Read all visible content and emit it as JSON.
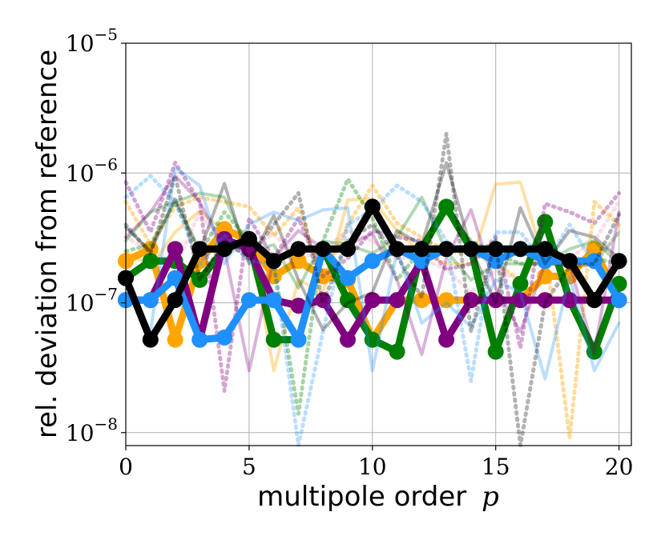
{
  "chart_data": {
    "type": "line",
    "xlabel": "multipole order",
    "xlabel_math": "p",
    "ylabel": "rel. deviation from reference",
    "xlim": [
      0,
      20.5
    ],
    "ylim_log10": [
      -8.1,
      -5
    ],
    "yscale": "log",
    "grid": true,
    "legend": "none",
    "x_ticks": [
      0,
      5,
      10,
      15,
      20
    ],
    "y_ticks": [
      {
        "base": "10",
        "exp": "−5",
        "value": -5
      },
      {
        "base": "10",
        "exp": "−6",
        "value": -6
      },
      {
        "base": "10",
        "exp": "−7",
        "value": -7
      },
      {
        "base": "10",
        "exp": "−8",
        "value": -8
      }
    ],
    "x": [
      0,
      1,
      2,
      3,
      4,
      5,
      6,
      7,
      8,
      9,
      10,
      11,
      12,
      13,
      14,
      15,
      16,
      17,
      18,
      19,
      20
    ],
    "series": [
      {
        "color": "#f5b8c8",
        "style": "dotted",
        "width": 5,
        "alpha": 0.45,
        "values": [
          3.2e-07,
          2.5e-07,
          1.9e-07,
          5e-07,
          2.5e-07,
          2.6e-07,
          3.4e-07,
          2.2e-07,
          2.5e-07,
          3.6e-07,
          3e-07,
          2.2e-07,
          2.2e-07,
          1.8e-07,
          1.2e-07,
          1.8e-07,
          1.5e-07,
          2.4e-07,
          2.2e-07,
          3e-07,
          6e-07
        ]
      },
      {
        "color": "#ffa500",
        "style": "dotted",
        "width": 5,
        "alpha": 0.4,
        "values": [
          6e-07,
          2.8e-07,
          5.5e-07,
          6.5e-07,
          6e-07,
          5.5e-07,
          3.3e-07,
          5.4e-07,
          1.5e-07,
          4e-07,
          8e-07,
          4.1e-07,
          3.2e-07,
          2.5e-07,
          2.4e-07,
          2e-07,
          1.5e-07,
          2.8e-07,
          9e-09,
          6e-07,
          4e-07
        ]
      },
      {
        "color": "#ffa500",
        "style": "solid",
        "width": 4,
        "alpha": 0.35,
        "values": [
          2.5e-07,
          1.9e-07,
          3.5e-07,
          5.1e-07,
          3.6e-07,
          3.5e-07,
          3e-08,
          1.5e-07,
          1.2e-07,
          6.2e-07,
          6.3e-07,
          3.6e-07,
          2.4e-07,
          2e-07,
          2e-07,
          8.2e-07,
          8.5e-07,
          2e-07,
          2e-07,
          2e-07,
          3.5e-07
        ]
      },
      {
        "color": "#ffa500",
        "style": "solid",
        "width": 9,
        "alpha": 1.0,
        "markers": true,
        "values": [
          2.1e-07,
          2.6e-07,
          5.2e-08,
          2.1e-07,
          3.7e-07,
          3e-07,
          1.6e-07,
          2.1e-07,
          1.6e-07,
          1.5e-07,
          5.2e-08,
          1.05e-07,
          1.05e-07,
          1.05e-07,
          1.05e-07,
          1.05e-07,
          1.05e-07,
          1.6e-07,
          1.6e-07,
          2.6e-07,
          1.05e-07
        ]
      },
      {
        "color": "#008000",
        "style": "dotted",
        "width": 5,
        "alpha": 0.35,
        "values": [
          2.5e-07,
          2.8e-07,
          6e-07,
          2.4e-07,
          5e-07,
          3e-07,
          2e-07,
          1.4e-08,
          3e-07,
          9e-07,
          4.5e-07,
          1.5e-07,
          2.6e-07,
          5e-07,
          3e-07,
          2.4e-07,
          2e-07,
          2e-07,
          2e-07,
          2.2e-07,
          2e-07
        ]
      },
      {
        "color": "#008000",
        "style": "solid",
        "width": 4,
        "alpha": 0.3,
        "values": [
          3e-07,
          5e-07,
          6e-07,
          7e-07,
          6.5e-07,
          2.5e-07,
          2.8e-07,
          1.3e-07,
          3e-07,
          2.8e-07,
          2.4e-07,
          3.2e-07,
          6.5e-07,
          2.5e-07,
          1.5e-07,
          2e-07,
          2e-07,
          2e-07,
          2.6e-07,
          3e-07,
          2e-07
        ]
      },
      {
        "color": "#008000",
        "style": "solid",
        "width": 9,
        "alpha": 1.0,
        "markers": true,
        "values": [
          1.55e-07,
          2.1e-07,
          2.1e-07,
          1.5e-07,
          2.6e-07,
          3e-07,
          5.2e-08,
          5.2e-08,
          2.6e-07,
          1.05e-07,
          5.2e-08,
          4.2e-08,
          2.6e-07,
          5.5e-07,
          2.6e-07,
          4.2e-08,
          1.4e-07,
          4.2e-07,
          1.05e-07,
          4.2e-08,
          1.4e-07
        ]
      },
      {
        "color": "#800080",
        "style": "dotted",
        "width": 5,
        "alpha": 0.35,
        "values": [
          8.5e-07,
          3.5e-07,
          1.2e-06,
          6e-07,
          2.1e-08,
          4.5e-07,
          2.2e-07,
          4.5e-07,
          1.6e-07,
          2.2e-07,
          3.6e-07,
          3.2e-07,
          3e-07,
          1.8e-07,
          2e-07,
          3.2e-07,
          4.5e-08,
          5.8e-07,
          5e-07,
          4.1e-07,
          7e-07
        ]
      },
      {
        "color": "#800080",
        "style": "solid",
        "width": 4,
        "alpha": 0.3,
        "values": [
          3.2e-07,
          5e-07,
          9.5e-07,
          6e-07,
          2.6e-07,
          3e-08,
          2.2e-07,
          3.6e-07,
          2.6e-07,
          2.8e-07,
          3.4e-07,
          1.5e-07,
          4e-08,
          2.2e-07,
          5.2e-07,
          1.3e-07,
          6e-08,
          2e-07,
          2e-07,
          4.1e-08,
          5e-07
        ]
      },
      {
        "color": "#800080",
        "style": "solid",
        "width": 9,
        "alpha": 1.0,
        "markers": true,
        "values": [
          1.05e-07,
          1.05e-07,
          2.6e-07,
          5.2e-08,
          3.1e-07,
          2.6e-07,
          1.05e-07,
          9.5e-08,
          1.05e-07,
          5.2e-08,
          1.05e-07,
          1.05e-07,
          2.1e-07,
          5.2e-08,
          1.05e-07,
          1.05e-07,
          1.05e-07,
          1.05e-07,
          1.05e-07,
          1.05e-07,
          1.05e-07
        ]
      },
      {
        "color": "#1e90ff",
        "style": "dotted",
        "width": 5,
        "alpha": 0.3,
        "values": [
          6.5e-07,
          9.5e-07,
          6e-07,
          2e-07,
          3.3e-07,
          2.1e-07,
          2e-07,
          8e-09,
          6e-08,
          4e-07,
          5.2e-07,
          8e-07,
          6e-07,
          3e-07,
          2.5e-08,
          3.5e-07,
          3.5e-07,
          2e-07,
          4e-07,
          2e-07,
          3.5e-07
        ]
      },
      {
        "color": "#1e90ff",
        "style": "solid",
        "width": 4,
        "alpha": 0.3,
        "values": [
          1.5e-07,
          6e-08,
          1.1e-06,
          8e-07,
          2e-07,
          4e-07,
          5e-07,
          4.3e-07,
          5.2e-07,
          5.4e-07,
          3e-08,
          2.5e-07,
          7e-08,
          1e-07,
          6.5e-08,
          1.5e-07,
          1.2e-07,
          2.6e-08,
          1.6e-07,
          3e-08,
          7e-08
        ]
      },
      {
        "color": "#1e90ff",
        "style": "solid",
        "width": 9,
        "alpha": 1.0,
        "markers": true,
        "values": [
          1.05e-07,
          1.05e-07,
          1.55e-07,
          5.2e-08,
          5.4e-08,
          1.05e-07,
          1.05e-07,
          5.2e-08,
          2.6e-07,
          1.55e-07,
          2.1e-07,
          2.6e-07,
          2.1e-07,
          2.6e-07,
          2.6e-07,
          2.1e-07,
          2.6e-07,
          2.1e-07,
          2.1e-07,
          2.1e-07,
          1.05e-07
        ]
      },
      {
        "color": "#000000",
        "style": "dotted",
        "width": 5,
        "alpha": 0.3,
        "values": [
          4e-07,
          2.4e-07,
          9.5e-07,
          1.5e-07,
          3e-07,
          2.2e-07,
          4e-07,
          7e-07,
          1e-07,
          3e-07,
          4e-07,
          2.3e-07,
          1.1e-07,
          2e-06,
          6e-08,
          3e-07,
          8e-09,
          1e-07,
          1.9e-07,
          2e-07,
          4.8e-07
        ]
      },
      {
        "color": "#000000",
        "style": "solid",
        "width": 4,
        "alpha": 0.3,
        "values": [
          3.8e-07,
          2.5e-07,
          6.3e-07,
          2.5e-07,
          8.3e-07,
          2e-07,
          4.7e-07,
          1.5e-07,
          6.2e-08,
          1e-07,
          1.2e-07,
          3.6e-07,
          2.8e-07,
          1.2e-06,
          2.6e-07,
          1e-07,
          5.4e-07,
          2e-07,
          3.6e-07,
          3.2e-07,
          2.2e-07
        ]
      },
      {
        "color": "#000000",
        "style": "solid",
        "width": 9,
        "alpha": 1.0,
        "markers": true,
        "values": [
          1.55e-07,
          5.2e-08,
          1.05e-07,
          2.6e-07,
          2.6e-07,
          3.1e-07,
          2.1e-07,
          2.6e-07,
          2.6e-07,
          2.6e-07,
          5.5e-07,
          2.6e-07,
          2.6e-07,
          2.6e-07,
          2.6e-07,
          2.6e-07,
          2.6e-07,
          2.6e-07,
          2.1e-07,
          1.05e-07,
          2.1e-07
        ]
      }
    ]
  }
}
